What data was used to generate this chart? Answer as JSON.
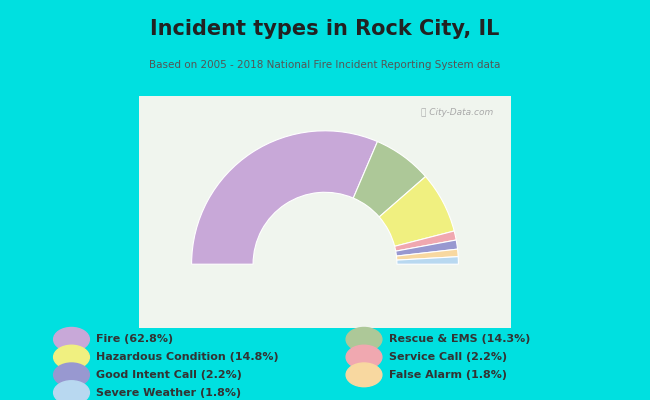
{
  "title": "Incident types in Rock City, IL",
  "subtitle": "Based on 2005 - 2018 National Fire Incident Reporting System data",
  "bg_color": "#00e0e0",
  "chart_bg_color": "#f0f5ee",
  "segments": [
    {
      "label": "Fire",
      "pct": 62.8,
      "color": "#c8a8d8"
    },
    {
      "label": "Rescue & EMS",
      "pct": 14.3,
      "color": "#adc898"
    },
    {
      "label": "Hazardous Condition",
      "pct": 14.8,
      "color": "#f0f080"
    },
    {
      "label": "Service Call",
      "pct": 2.2,
      "color": "#f0a8b0"
    },
    {
      "label": "Good Intent Call",
      "pct": 2.2,
      "color": "#9898d0"
    },
    {
      "label": "False Alarm",
      "pct": 1.8,
      "color": "#f8d8a0"
    },
    {
      "label": "Severe Weather",
      "pct": 1.8,
      "color": "#b8d8f0"
    }
  ],
  "legend_left": [
    {
      "label": "Fire (62.8%)",
      "color": "#c8a8d8"
    },
    {
      "label": "Hazardous Condition (14.8%)",
      "color": "#f0f080"
    },
    {
      "label": "Good Intent Call (2.2%)",
      "color": "#9898d0"
    },
    {
      "label": "Severe Weather (1.8%)",
      "color": "#b8d8f0"
    }
  ],
  "legend_right": [
    {
      "label": "Rescue & EMS (14.3%)",
      "color": "#adc898"
    },
    {
      "label": "Service Call (2.2%)",
      "color": "#f0a8b0"
    },
    {
      "label": "False Alarm (1.8%)",
      "color": "#f8d8a0"
    }
  ],
  "outer_r": 1.15,
  "inner_r": 0.62,
  "title_fontsize": 15,
  "subtitle_fontsize": 7.5,
  "legend_fontsize": 8
}
